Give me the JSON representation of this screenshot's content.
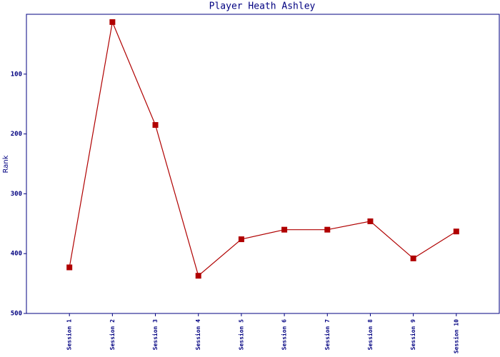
{
  "chart_data": {
    "type": "line",
    "title": "Player Heath Ashley",
    "y_label": "Rank",
    "categories": [
      "Session 1",
      "Session 2",
      "Session 3",
      "Session 4",
      "Session 5",
      "Session 6",
      "Session 7",
      "Session 8",
      "Session 9",
      "Session 10"
    ],
    "values": [
      423,
      13,
      185,
      437,
      376,
      360,
      360,
      346,
      408,
      363
    ],
    "color": "#b00000",
    "axis_color": "#000080",
    "ylim": [
      0,
      500
    ],
    "yticks": [
      100,
      200,
      300,
      400,
      500
    ],
    "y_inverted": true,
    "grid": false
  }
}
